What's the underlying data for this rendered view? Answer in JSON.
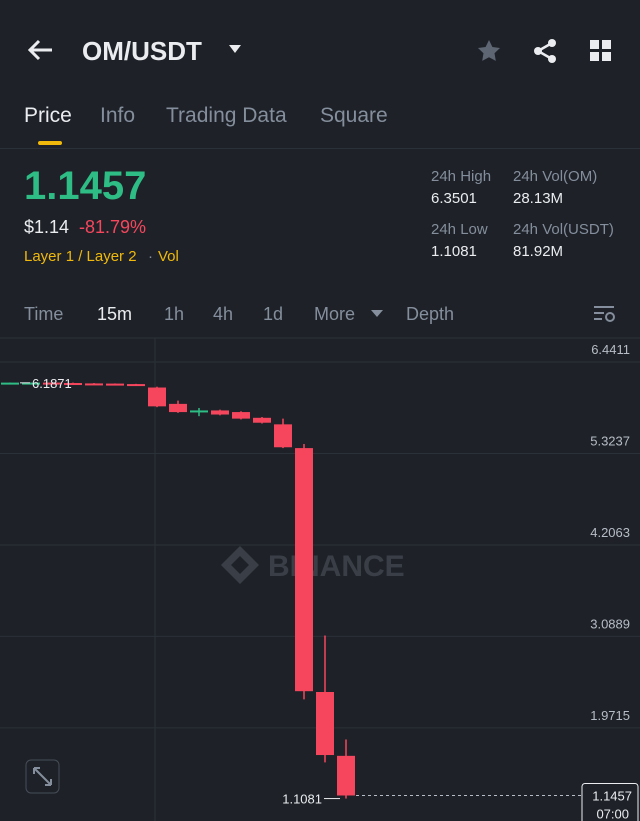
{
  "header": {
    "pair": "OM/USDT"
  },
  "tabs": [
    "Price",
    "Info",
    "Trading Data",
    "Square"
  ],
  "price": {
    "last": "1.1457",
    "usd": "$1.14",
    "change": "-81.79%",
    "tags": [
      "Layer 1 / Layer 2",
      "Vol"
    ]
  },
  "stats": [
    {
      "label": "24h High",
      "value": "6.3501"
    },
    {
      "label": "24h Vol(OM)",
      "value": "28.13M"
    },
    {
      "label": "24h Low",
      "value": "1.1081"
    },
    {
      "label": "24h Vol(USDT)",
      "value": "81.92M"
    }
  ],
  "intervals": [
    "Time",
    "15m",
    "1h",
    "4h",
    "1d",
    "More",
    "Depth"
  ],
  "chart_data": {
    "type": "candlestick",
    "watermark": "BINANCE",
    "up_color": "#2ebd85",
    "down_color": "#f6465d",
    "open": [
      6.18,
      6.185,
      6.19,
      6.185,
      6.18,
      6.178,
      6.172,
      6.13,
      5.93,
      5.83,
      5.85,
      5.83,
      5.76,
      5.68,
      5.39,
      2.41,
      1.63
    ],
    "high": [
      6.19,
      6.19,
      6.19,
      6.19,
      6.185,
      6.18,
      6.175,
      6.14,
      5.97,
      5.88,
      5.86,
      5.84,
      5.77,
      5.75,
      5.44,
      3.1,
      1.83
    ],
    "low": [
      6.175,
      6.18,
      6.18,
      6.175,
      6.17,
      6.17,
      6.16,
      5.89,
      5.82,
      5.78,
      5.79,
      5.74,
      5.69,
      5.39,
      2.32,
      1.55,
      1.1081
    ],
    "close": [
      6.19,
      6.19,
      6.185,
      6.18,
      6.178,
      6.172,
      6.165,
      5.9,
      5.83,
      5.85,
      5.8,
      5.75,
      5.7,
      5.4,
      2.42,
      1.64,
      1.1457
    ],
    "ylim": [
      0.834,
      6.735
    ],
    "yticks": [
      6.4411,
      5.3237,
      4.2063,
      3.0889,
      1.9715
    ],
    "annotations": [
      {
        "text": "6.1871",
        "value": 6.1871
      },
      {
        "text": "1.1081",
        "value": 1.1081
      }
    ],
    "last_price": {
      "value": 1.1457,
      "label": "1.1457",
      "time": "07:00"
    }
  }
}
